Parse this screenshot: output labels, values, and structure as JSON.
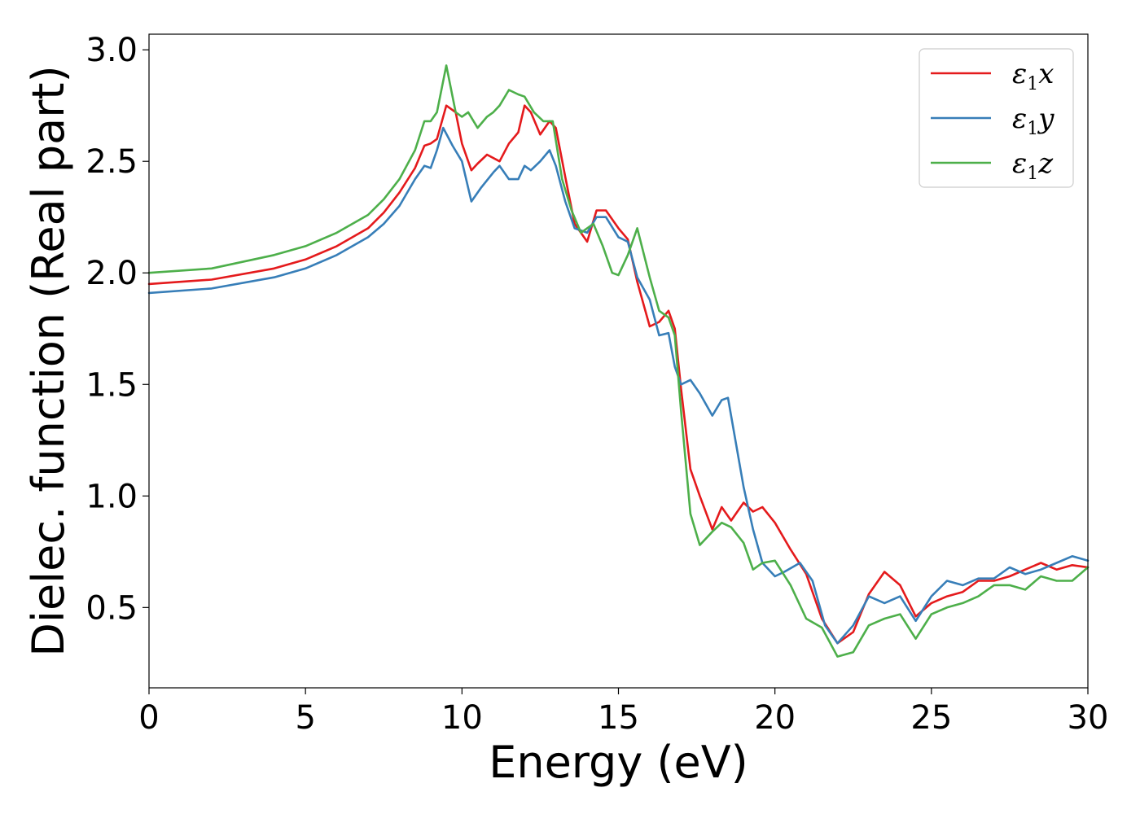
{
  "chart_data": {
    "type": "line",
    "xlabel": "Energy (eV)",
    "ylabel": "Dielec. function (Real part)",
    "xlim": [
      0,
      30
    ],
    "ylim": [
      0.14,
      3.07
    ],
    "xticks": [
      "0",
      "5",
      "10",
      "15",
      "20",
      "25",
      "30"
    ],
    "yticks": [
      "0.5",
      "1.0",
      "1.5",
      "2.0",
      "2.5",
      "3.0"
    ],
    "grid": false,
    "legend_position": "top-right",
    "series": [
      {
        "name": "ε1x",
        "legend_base": "ε",
        "legend_sub": "1",
        "legend_tail": "x",
        "color": "#e41a1c",
        "x": [
          0,
          2,
          4,
          5,
          6,
          7,
          7.5,
          8,
          8.5,
          8.8,
          9.0,
          9.2,
          9.5,
          9.8,
          10.0,
          10.3,
          10.5,
          10.8,
          11.2,
          11.5,
          11.8,
          12.0,
          12.2,
          12.5,
          12.8,
          13.0,
          13.3,
          13.6,
          14.0,
          14.3,
          14.6,
          15.0,
          15.3,
          15.6,
          16.0,
          16.3,
          16.6,
          16.8,
          17.0,
          17.3,
          17.6,
          18.0,
          18.3,
          18.6,
          19.0,
          19.3,
          19.6,
          20.0,
          20.5,
          21.0,
          21.5,
          22.0,
          22.5,
          23.0,
          23.5,
          24.0,
          24.5,
          25.0,
          25.5,
          26.0,
          26.5,
          27.0,
          27.5,
          28.0,
          28.5,
          29.0,
          29.5,
          30.0
        ],
        "values": [
          1.95,
          1.97,
          2.02,
          2.06,
          2.12,
          2.2,
          2.27,
          2.36,
          2.47,
          2.57,
          2.58,
          2.6,
          2.75,
          2.72,
          2.58,
          2.46,
          2.49,
          2.53,
          2.5,
          2.58,
          2.63,
          2.75,
          2.72,
          2.62,
          2.68,
          2.65,
          2.43,
          2.22,
          2.14,
          2.28,
          2.28,
          2.2,
          2.15,
          1.96,
          1.76,
          1.78,
          1.83,
          1.75,
          1.48,
          1.12,
          1.0,
          0.85,
          0.95,
          0.89,
          0.97,
          0.93,
          0.95,
          0.88,
          0.76,
          0.65,
          0.45,
          0.34,
          0.39,
          0.56,
          0.66,
          0.6,
          0.46,
          0.52,
          0.55,
          0.57,
          0.62,
          0.62,
          0.64,
          0.67,
          0.7,
          0.67,
          0.69,
          0.68
        ]
      },
      {
        "name": "ε1y",
        "legend_base": "ε",
        "legend_sub": "1",
        "legend_tail": "y",
        "color": "#377eb8",
        "x": [
          0,
          2,
          4,
          5,
          6,
          7,
          7.5,
          8,
          8.5,
          8.8,
          9.0,
          9.2,
          9.4,
          9.7,
          10.0,
          10.3,
          10.6,
          11.0,
          11.2,
          11.5,
          11.8,
          12.0,
          12.2,
          12.5,
          12.8,
          13.0,
          13.3,
          13.6,
          14.0,
          14.3,
          14.6,
          15.0,
          15.3,
          15.6,
          16.0,
          16.3,
          16.6,
          16.8,
          17.0,
          17.3,
          17.6,
          18.0,
          18.3,
          18.5,
          18.7,
          19.0,
          19.3,
          19.6,
          20.0,
          20.3,
          20.8,
          21.2,
          21.6,
          22.0,
          22.5,
          23.0,
          23.5,
          24.0,
          24.5,
          25.0,
          25.5,
          26.0,
          26.5,
          27.0,
          27.5,
          28.0,
          28.5,
          29.0,
          29.5,
          30.0
        ],
        "values": [
          1.91,
          1.93,
          1.98,
          2.02,
          2.08,
          2.16,
          2.22,
          2.3,
          2.42,
          2.48,
          2.47,
          2.55,
          2.65,
          2.57,
          2.5,
          2.32,
          2.38,
          2.45,
          2.48,
          2.42,
          2.42,
          2.48,
          2.46,
          2.5,
          2.55,
          2.48,
          2.32,
          2.2,
          2.18,
          2.25,
          2.25,
          2.16,
          2.14,
          1.98,
          1.88,
          1.72,
          1.73,
          1.58,
          1.5,
          1.52,
          1.46,
          1.36,
          1.43,
          1.44,
          1.28,
          1.04,
          0.85,
          0.7,
          0.64,
          0.66,
          0.7,
          0.62,
          0.42,
          0.34,
          0.42,
          0.55,
          0.52,
          0.55,
          0.44,
          0.55,
          0.62,
          0.6,
          0.63,
          0.63,
          0.68,
          0.65,
          0.67,
          0.7,
          0.73,
          0.71
        ]
      },
      {
        "name": "ε1z",
        "legend_base": "ε",
        "legend_sub": "1",
        "legend_tail": "z",
        "color": "#4daf4a",
        "x": [
          0,
          2,
          4,
          5,
          6,
          7,
          7.5,
          8,
          8.5,
          8.8,
          9.0,
          9.2,
          9.5,
          9.8,
          10.0,
          10.2,
          10.5,
          10.8,
          11.0,
          11.2,
          11.5,
          11.8,
          12.0,
          12.3,
          12.6,
          12.9,
          13.2,
          13.5,
          13.8,
          14.0,
          14.2,
          14.5,
          14.8,
          15.0,
          15.3,
          15.6,
          16.0,
          16.3,
          16.6,
          16.8,
          17.0,
          17.3,
          17.6,
          18.0,
          18.3,
          18.6,
          19.0,
          19.3,
          19.6,
          20.0,
          20.5,
          21.0,
          21.5,
          22.0,
          22.5,
          23.0,
          23.5,
          24.0,
          24.5,
          25.0,
          25.5,
          26.0,
          26.5,
          27.0,
          27.5,
          28.0,
          28.5,
          29.0,
          29.5,
          30.0
        ],
        "values": [
          2.0,
          2.02,
          2.08,
          2.12,
          2.18,
          2.26,
          2.33,
          2.42,
          2.55,
          2.68,
          2.68,
          2.72,
          2.93,
          2.72,
          2.7,
          2.72,
          2.65,
          2.7,
          2.72,
          2.75,
          2.82,
          2.8,
          2.79,
          2.72,
          2.68,
          2.68,
          2.42,
          2.28,
          2.18,
          2.2,
          2.22,
          2.12,
          2.0,
          1.99,
          2.08,
          2.2,
          1.98,
          1.83,
          1.8,
          1.72,
          1.38,
          0.92,
          0.78,
          0.84,
          0.88,
          0.86,
          0.79,
          0.67,
          0.7,
          0.71,
          0.6,
          0.45,
          0.41,
          0.28,
          0.3,
          0.42,
          0.45,
          0.47,
          0.36,
          0.47,
          0.5,
          0.52,
          0.55,
          0.6,
          0.6,
          0.58,
          0.64,
          0.62,
          0.62,
          0.68
        ]
      }
    ]
  }
}
